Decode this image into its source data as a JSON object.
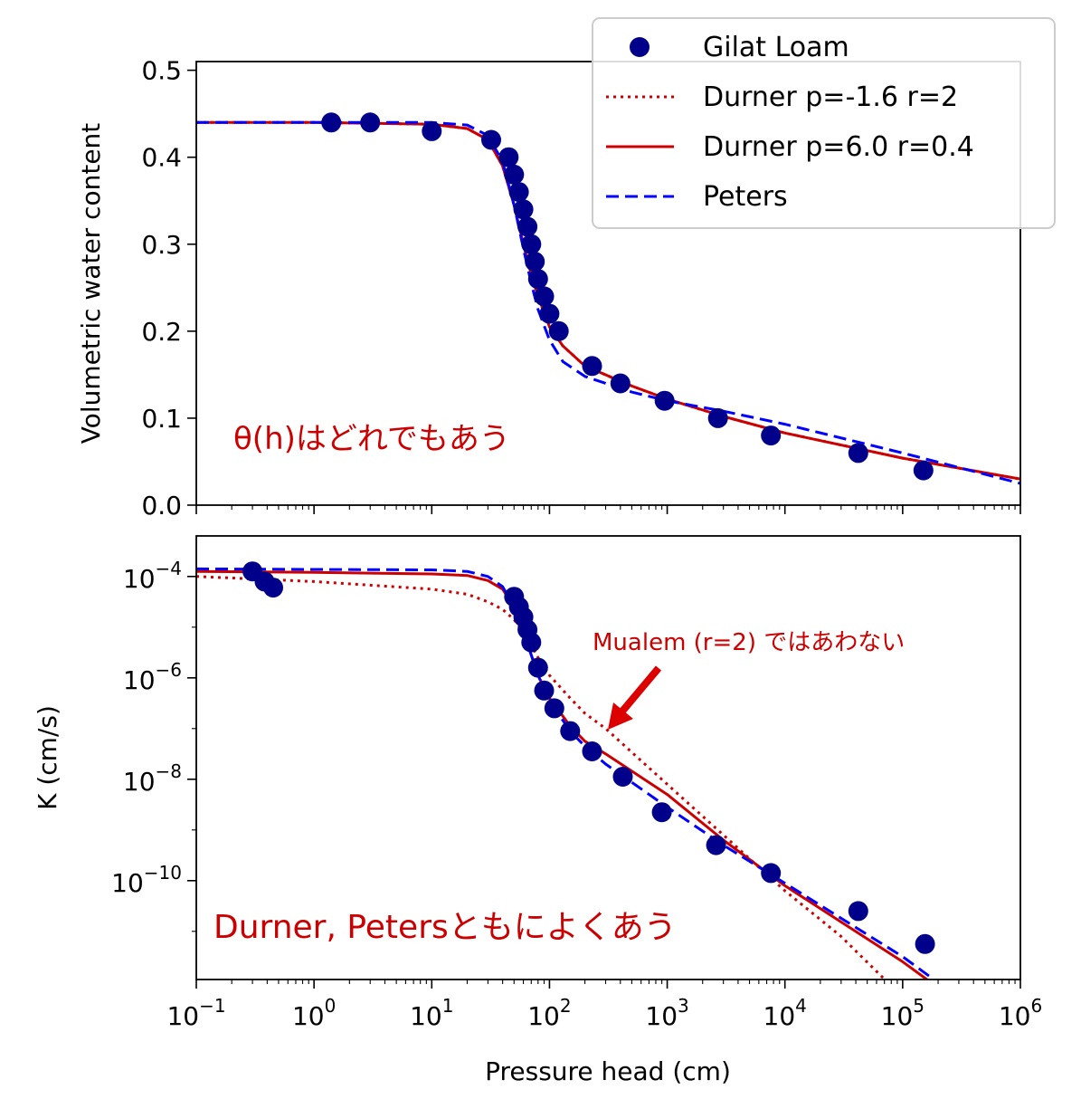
{
  "chart_data": [
    {
      "type": "scatter+line",
      "panel": "top",
      "ylabel": "Volumetric water content",
      "xscale": "log",
      "yscale": "linear",
      "xlim": [
        0.1,
        1000000
      ],
      "ylim": [
        0.0,
        0.51
      ],
      "yticks": [
        "0.0",
        "0.1",
        "0.2",
        "0.3",
        "0.4",
        "0.5"
      ],
      "annotation": "θ(h)はどれでもあう",
      "legend": {
        "placement": "top-right",
        "entries": [
          "Gilat Loam",
          "Durner p=-1.6 r=2",
          "Durner p=6.0 r=0.4",
          "Peters"
        ]
      },
      "series": [
        {
          "name": "Gilat Loam",
          "kind": "points",
          "color": "#00008b",
          "x": [
            1.4,
            3.0,
            10,
            32,
            45,
            50,
            55,
            60,
            65,
            70,
            75,
            80,
            90,
            100,
            120,
            230,
            400,
            950,
            2700,
            7600,
            42000,
            150000
          ],
          "y": [
            0.44,
            0.44,
            0.43,
            0.42,
            0.4,
            0.38,
            0.36,
            0.34,
            0.32,
            0.3,
            0.28,
            0.26,
            0.24,
            0.22,
            0.2,
            0.16,
            0.14,
            0.12,
            0.1,
            0.08,
            0.06,
            0.04
          ]
        },
        {
          "name": "Durner p=-1.6 r=2",
          "kind": "line",
          "style": "dotted",
          "color": "#cc0000",
          "x": [
            0.1,
            1,
            10,
            20,
            30,
            40,
            50,
            60,
            70,
            80,
            100,
            130,
            200,
            500,
            1000,
            3000,
            10000,
            100000,
            1000000
          ],
          "y": [
            0.44,
            0.44,
            0.438,
            0.433,
            0.42,
            0.39,
            0.345,
            0.3,
            0.265,
            0.24,
            0.205,
            0.183,
            0.16,
            0.137,
            0.122,
            0.102,
            0.083,
            0.054,
            0.03
          ]
        },
        {
          "name": "Durner p=6.0 r=0.4",
          "kind": "line",
          "style": "solid",
          "color": "#cc0000",
          "x": [
            0.1,
            1,
            10,
            20,
            30,
            40,
            50,
            60,
            70,
            80,
            100,
            130,
            200,
            500,
            1000,
            3000,
            10000,
            100000,
            1000000
          ],
          "y": [
            0.44,
            0.44,
            0.438,
            0.433,
            0.42,
            0.39,
            0.345,
            0.3,
            0.265,
            0.24,
            0.205,
            0.183,
            0.16,
            0.137,
            0.122,
            0.102,
            0.083,
            0.054,
            0.03
          ]
        },
        {
          "name": "Peters",
          "kind": "line",
          "style": "dashed",
          "color": "#0000ff",
          "x": [
            0.1,
            1,
            10,
            20,
            30,
            40,
            50,
            60,
            70,
            80,
            100,
            130,
            200,
            500,
            1000,
            3000,
            10000,
            100000,
            1000000
          ],
          "y": [
            0.44,
            0.44,
            0.44,
            0.437,
            0.425,
            0.395,
            0.345,
            0.295,
            0.255,
            0.225,
            0.19,
            0.165,
            0.148,
            0.13,
            0.12,
            0.108,
            0.093,
            0.06,
            0.025
          ]
        }
      ]
    },
    {
      "type": "scatter+line",
      "panel": "bottom",
      "xlabel": "Pressure head (cm)",
      "ylabel": "K (cm/s)",
      "xscale": "log",
      "yscale": "log",
      "xlim": [
        0.1,
        1000000
      ],
      "ylim_exponent": [
        -11.95,
        -3.2
      ],
      "xticks": [
        {
          "base": "10",
          "exp": "−1"
        },
        {
          "base": "10",
          "exp": "0"
        },
        {
          "base": "10",
          "exp": "1"
        },
        {
          "base": "10",
          "exp": "2"
        },
        {
          "base": "10",
          "exp": "3"
        },
        {
          "base": "10",
          "exp": "4"
        },
        {
          "base": "10",
          "exp": "5"
        },
        {
          "base": "10",
          "exp": "6"
        }
      ],
      "yticks": [
        {
          "base": "10",
          "exp": "−4"
        },
        {
          "base": "10",
          "exp": "−6"
        },
        {
          "base": "10",
          "exp": "−8"
        },
        {
          "base": "10",
          "exp": "−10"
        }
      ],
      "annotations": [
        {
          "text": "Durner, Petersともによくあう"
        },
        {
          "text": "Mualem (r=2) ではあわない",
          "arrow": true
        }
      ],
      "series": [
        {
          "name": "Gilat Loam",
          "kind": "points",
          "color": "#00008b",
          "x": [
            0.3,
            0.38,
            0.45,
            50,
            55,
            60,
            65,
            70,
            80,
            90,
            110,
            150,
            230,
            420,
            900,
            2600,
            7600,
            42000,
            155000
          ],
          "log10y": [
            -3.9,
            -4.1,
            -4.22,
            -4.4,
            -4.6,
            -4.8,
            -5.05,
            -5.3,
            -5.8,
            -6.25,
            -6.6,
            -7.05,
            -7.45,
            -7.95,
            -8.65,
            -9.3,
            -9.85,
            -10.6,
            -11.25
          ]
        },
        {
          "name": "Durner p=-1.6 r=2",
          "kind": "line",
          "style": "dotted",
          "color": "#cc0000",
          "x": [
            0.1,
            1,
            10,
            20,
            30,
            40,
            50,
            60,
            70,
            80,
            100,
            150,
            200,
            300,
            1000,
            3000,
            10000,
            30000,
            100000,
            1000000
          ],
          "log10y": [
            -4.0,
            -4.1,
            -4.25,
            -4.35,
            -4.5,
            -4.65,
            -4.85,
            -5.1,
            -5.35,
            -5.6,
            -5.95,
            -6.4,
            -6.7,
            -7.0,
            -8.1,
            -9.1,
            -10.2,
            -11.1,
            -12.3,
            -14.5
          ]
        },
        {
          "name": "Durner p=6.0 r=0.4",
          "kind": "line",
          "style": "solid",
          "color": "#cc0000",
          "x": [
            0.1,
            1,
            10,
            20,
            30,
            40,
            50,
            60,
            70,
            80,
            100,
            150,
            200,
            300,
            1000,
            3000,
            10000,
            100000,
            1000000
          ],
          "log10y": [
            -3.9,
            -3.92,
            -3.95,
            -3.98,
            -4.08,
            -4.25,
            -4.6,
            -5.1,
            -5.55,
            -5.95,
            -6.4,
            -6.95,
            -7.25,
            -7.5,
            -8.3,
            -9.2,
            -10.1,
            -11.6,
            -13.3
          ]
        },
        {
          "name": "Peters",
          "kind": "line",
          "style": "dashed",
          "color": "#0000ff",
          "x": [
            0.1,
            1,
            10,
            20,
            30,
            40,
            50,
            60,
            70,
            80,
            100,
            150,
            200,
            300,
            1000,
            3000,
            10000,
            100000,
            1000000
          ],
          "log10y": [
            -3.85,
            -3.86,
            -3.87,
            -3.9,
            -4.0,
            -4.2,
            -4.6,
            -5.1,
            -5.55,
            -5.95,
            -6.45,
            -7.05,
            -7.35,
            -7.7,
            -8.55,
            -9.3,
            -10.05,
            -11.5,
            -13.2
          ]
        }
      ]
    }
  ]
}
